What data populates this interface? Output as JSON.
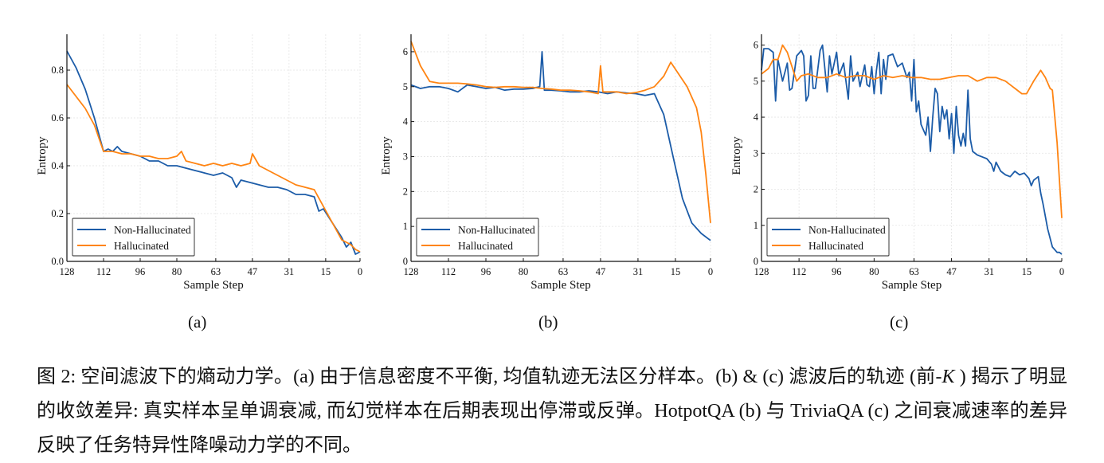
{
  "colors": {
    "non_hallucinated": "#1c5ca8",
    "hallucinated": "#ff8412"
  },
  "subcaptions": [
    "(a)",
    "(b)",
    "(c)"
  ],
  "caption": {
    "part1": "图 2: 空间滤波下的熵动力学。(a) 由于信息密度不平衡, 均值轨迹无法区分样本。(b) & (c) 滤波后的轨迹 (前-",
    "k": "K",
    "part2": " ) 揭示了明显的收敛差异: 真实样本呈单调衰减, 而幻觉样本在后期表现出停滞或反弹。HotpotQA (b) 与 TriviaQA (c) 之间衰减速率的差异反映了任务特异性降噪动力学的不同。"
  },
  "chart_data": [
    {
      "type": "line",
      "panel": "(a)",
      "xlabel": "Sample Step",
      "ylabel": "Entropy",
      "xlim": [
        128,
        0
      ],
      "ylim": [
        0,
        0.95
      ],
      "xticks": [
        128,
        112,
        96,
        80,
        63,
        47,
        31,
        15,
        0
      ],
      "yticks": [
        0.0,
        0.2,
        0.4,
        0.6,
        0.8
      ],
      "ytick_labels": [
        "0.0",
        "0.2",
        "0.4",
        "0.6",
        "0.8"
      ],
      "grid": true,
      "legend": "bottom-left",
      "series": [
        {
          "name": "Non-Hallucinated",
          "x": [
            128,
            124,
            120,
            116,
            112,
            110,
            108,
            106,
            104,
            100,
            96,
            92,
            88,
            84,
            80,
            76,
            72,
            68,
            64,
            60,
            56,
            54,
            52,
            48,
            44,
            40,
            36,
            32,
            28,
            24,
            20,
            18,
            16,
            12,
            8,
            6,
            4,
            2,
            0
          ],
          "y": [
            0.88,
            0.81,
            0.72,
            0.6,
            0.46,
            0.47,
            0.46,
            0.48,
            0.46,
            0.45,
            0.44,
            0.42,
            0.42,
            0.4,
            0.4,
            0.39,
            0.38,
            0.37,
            0.36,
            0.37,
            0.35,
            0.31,
            0.34,
            0.33,
            0.32,
            0.31,
            0.31,
            0.3,
            0.28,
            0.28,
            0.27,
            0.21,
            0.22,
            0.16,
            0.1,
            0.06,
            0.08,
            0.03,
            0.04
          ]
        },
        {
          "name": "Hallucinated",
          "x": [
            128,
            124,
            120,
            116,
            112,
            108,
            104,
            100,
            96,
            92,
            88,
            84,
            80,
            78,
            76,
            72,
            68,
            64,
            60,
            56,
            52,
            48,
            47,
            44,
            40,
            36,
            32,
            28,
            24,
            20,
            16,
            12,
            8,
            4,
            2,
            0
          ],
          "y": [
            0.74,
            0.69,
            0.64,
            0.57,
            0.46,
            0.46,
            0.45,
            0.45,
            0.44,
            0.44,
            0.43,
            0.43,
            0.44,
            0.46,
            0.42,
            0.41,
            0.4,
            0.41,
            0.4,
            0.41,
            0.4,
            0.41,
            0.45,
            0.4,
            0.38,
            0.36,
            0.34,
            0.32,
            0.31,
            0.3,
            0.23,
            0.16,
            0.09,
            0.07,
            0.05,
            0.04
          ]
        }
      ]
    },
    {
      "type": "line",
      "panel": "(b)",
      "xlabel": "Sample Step",
      "ylabel": "Entropy",
      "xlim": [
        128,
        0
      ],
      "ylim": [
        0,
        6.5
      ],
      "xticks": [
        128,
        112,
        96,
        80,
        63,
        47,
        31,
        15,
        0
      ],
      "yticks": [
        0,
        1,
        2,
        3,
        4,
        5,
        6
      ],
      "ytick_labels": [
        "0",
        "1",
        "2",
        "3",
        "4",
        "5",
        "6"
      ],
      "grid": true,
      "legend": "bottom-left",
      "series": [
        {
          "name": "Non-Hallucinated",
          "x": [
            128,
            124,
            120,
            116,
            112,
            108,
            104,
            100,
            96,
            92,
            88,
            84,
            80,
            76,
            73,
            72,
            71,
            68,
            64,
            60,
            56,
            52,
            48,
            44,
            40,
            36,
            32,
            28,
            24,
            20,
            16,
            12,
            8,
            4,
            0
          ],
          "y": [
            5.05,
            4.95,
            5.0,
            5.0,
            4.95,
            4.85,
            5.05,
            5.0,
            4.95,
            4.98,
            4.9,
            4.93,
            4.93,
            4.95,
            5.0,
            6.0,
            4.9,
            4.9,
            4.88,
            4.85,
            4.85,
            4.88,
            4.85,
            4.8,
            4.85,
            4.82,
            4.8,
            4.75,
            4.8,
            4.2,
            3.0,
            1.8,
            1.1,
            0.8,
            0.6
          ]
        },
        {
          "name": "Hallucinated",
          "x": [
            128,
            124,
            120,
            116,
            112,
            108,
            104,
            100,
            96,
            92,
            88,
            84,
            80,
            76,
            72,
            68,
            64,
            60,
            56,
            52,
            48,
            47,
            46,
            44,
            40,
            36,
            32,
            28,
            24,
            20,
            17,
            14,
            10,
            6,
            4,
            2,
            0
          ],
          "y": [
            6.3,
            5.6,
            5.15,
            5.1,
            5.1,
            5.1,
            5.08,
            5.05,
            5.0,
            4.98,
            5.0,
            5.0,
            4.98,
            4.98,
            4.95,
            4.93,
            4.9,
            4.9,
            4.88,
            4.85,
            4.8,
            5.6,
            4.85,
            4.85,
            4.85,
            4.8,
            4.83,
            4.9,
            5.0,
            5.3,
            5.7,
            5.4,
            5.0,
            4.4,
            3.7,
            2.5,
            1.1
          ]
        }
      ]
    },
    {
      "type": "line",
      "panel": "(c)",
      "xlabel": "Sample Step",
      "ylabel": "Entropy",
      "xlim": [
        128,
        0
      ],
      "ylim": [
        0,
        6.3
      ],
      "xticks": [
        128,
        112,
        96,
        80,
        63,
        47,
        31,
        15,
        0
      ],
      "yticks": [
        0,
        1,
        2,
        3,
        4,
        5,
        6
      ],
      "ytick_labels": [
        "0",
        "1",
        "2",
        "3",
        "4",
        "5",
        "6"
      ],
      "grid": true,
      "legend": "bottom-left",
      "series": [
        {
          "name": "Non-Hallucinated",
          "x": [
            128,
            127,
            125,
            123,
            122,
            121,
            119,
            117,
            116,
            115,
            113,
            111,
            110,
            109,
            108,
            107,
            106,
            105,
            103,
            102,
            100,
            99,
            98,
            96,
            95,
            93,
            91,
            90,
            89,
            87,
            86,
            84,
            83,
            82,
            81,
            80,
            79,
            78,
            77,
            76,
            75,
            74,
            72,
            70,
            68,
            66,
            65,
            64,
            63,
            62,
            61,
            60,
            58,
            57,
            56,
            55,
            54,
            53,
            52,
            51,
            50,
            49,
            48,
            47,
            46,
            45,
            44,
            43,
            42,
            41,
            40,
            39,
            38,
            36,
            34,
            32,
            30,
            29,
            28,
            26,
            24,
            22,
            20,
            18,
            16,
            14,
            13,
            12,
            10,
            9,
            8,
            6,
            4,
            2,
            1,
            0
          ],
          "y": [
            5.3,
            5.9,
            5.9,
            5.8,
            4.45,
            5.6,
            5.0,
            5.5,
            4.75,
            4.8,
            5.7,
            5.85,
            5.7,
            4.45,
            4.6,
            5.7,
            4.8,
            4.8,
            5.85,
            6.0,
            4.7,
            5.7,
            5.2,
            5.8,
            5.15,
            5.5,
            4.5,
            5.7,
            5.0,
            5.25,
            4.85,
            5.45,
            4.9,
            4.85,
            5.4,
            4.65,
            5.3,
            5.8,
            4.65,
            5.6,
            5.05,
            5.7,
            5.75,
            5.4,
            5.5,
            5.1,
            5.25,
            4.45,
            5.6,
            4.15,
            4.45,
            3.8,
            3.5,
            4.0,
            3.05,
            4.0,
            4.8,
            4.65,
            3.6,
            4.3,
            3.95,
            4.2,
            3.4,
            4.1,
            3.0,
            4.3,
            3.5,
            3.2,
            3.55,
            3.2,
            4.75,
            3.4,
            3.05,
            2.95,
            2.9,
            2.85,
            2.7,
            2.5,
            2.75,
            2.5,
            2.4,
            2.35,
            2.5,
            2.4,
            2.45,
            2.3,
            2.1,
            2.25,
            2.35,
            1.9,
            1.6,
            0.9,
            0.4,
            0.25,
            0.25,
            0.2
          ]
        },
        {
          "name": "Hallucinated",
          "x": [
            128,
            125,
            123,
            121,
            119,
            117,
            115,
            113,
            111,
            108,
            104,
            100,
            96,
            92,
            88,
            84,
            80,
            76,
            72,
            68,
            64,
            60,
            56,
            52,
            48,
            44,
            40,
            36,
            32,
            28,
            24,
            20,
            17,
            15,
            12,
            9,
            7,
            5,
            4,
            2,
            0
          ],
          "y": [
            5.2,
            5.35,
            5.6,
            5.6,
            6.0,
            5.8,
            5.4,
            5.0,
            5.15,
            5.2,
            5.1,
            5.1,
            5.2,
            5.1,
            5.15,
            5.15,
            5.05,
            5.15,
            5.1,
            5.15,
            5.1,
            5.1,
            5.05,
            5.05,
            5.1,
            5.15,
            5.15,
            5.0,
            5.1,
            5.1,
            5.0,
            4.8,
            4.65,
            4.65,
            5.0,
            5.3,
            5.1,
            4.8,
            4.75,
            3.3,
            1.2
          ]
        }
      ]
    }
  ]
}
